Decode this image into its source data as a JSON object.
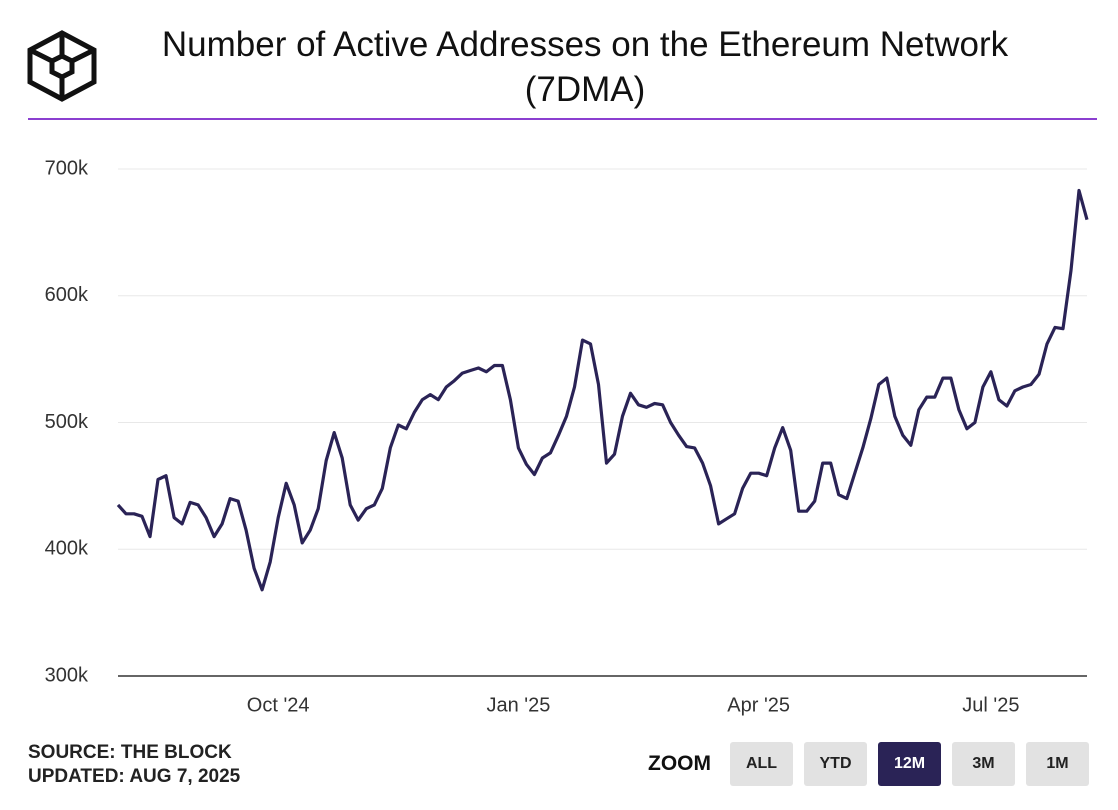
{
  "chart_data": {
    "type": "line",
    "title": "Number of Active Addresses on the Ethereum Network (7DMA)",
    "categories": [
      null,
      null,
      null,
      null,
      null,
      null,
      null,
      null,
      null,
      null,
      null,
      null,
      null,
      null,
      null,
      null,
      null,
      null,
      null,
      null,
      "Oct '24",
      null,
      null,
      null,
      null,
      null,
      null,
      null,
      null,
      null,
      null,
      null,
      null,
      null,
      null,
      null,
      null,
      null,
      null,
      null,
      null,
      null,
      null,
      null,
      null,
      null,
      null,
      null,
      null,
      null,
      "Jan '25",
      null,
      null,
      null,
      null,
      null,
      null,
      null,
      null,
      null,
      null,
      null,
      null,
      null,
      null,
      null,
      null,
      null,
      null,
      null,
      null,
      null,
      null,
      null,
      null,
      null,
      null,
      null,
      null,
      null,
      "Apr '25",
      null,
      null,
      null,
      null,
      null,
      null,
      null,
      null,
      null,
      null,
      null,
      null,
      null,
      null,
      null,
      null,
      null,
      null,
      null,
      null,
      null,
      null,
      null,
      null,
      null,
      null,
      null,
      null,
      "Jul '25",
      null,
      null,
      null,
      null,
      null,
      null,
      null,
      null,
      null,
      null,
      null,
      null
    ],
    "series": [
      {
        "name": "Active Addresses (7DMA)",
        "color": "#2a2356",
        "values": [
          435000,
          428000,
          428000,
          426000,
          410000,
          455000,
          458000,
          425000,
          420000,
          437000,
          435000,
          425000,
          410000,
          420000,
          440000,
          438000,
          415000,
          385000,
          368000,
          390000,
          425000,
          452000,
          435000,
          405000,
          415000,
          432000,
          470000,
          492000,
          472000,
          435000,
          423000,
          432000,
          435000,
          448000,
          480000,
          498000,
          495000,
          508000,
          518000,
          522000,
          518000,
          528000,
          533000,
          539000,
          541000,
          543000,
          540000,
          545000,
          545000,
          518000,
          480000,
          467000,
          459000,
          472000,
          476000,
          490000,
          505000,
          528000,
          565000,
          562000,
          530000,
          468000,
          475000,
          505000,
          523000,
          514000,
          512000,
          515000,
          514000,
          500000,
          490000,
          481000,
          480000,
          468000,
          450000,
          420000,
          424000,
          428000,
          448000,
          460000,
          460000,
          458000,
          480000,
          496000,
          478000,
          430000,
          430000,
          438000,
          468000,
          468000,
          443000,
          440000,
          460000,
          480000,
          503000,
          530000,
          535000,
          505000,
          490000,
          482000,
          510000,
          520000,
          520000,
          535000,
          535000,
          510000,
          495000,
          500000,
          528000,
          540000,
          518000,
          513000,
          525000,
          528000,
          530000,
          538000,
          562000,
          575000,
          574000,
          620000,
          683000,
          660000
        ]
      }
    ],
    "ylim": [
      300000,
      700000
    ],
    "yticks": [
      {
        "value": 300000,
        "label": "300k"
      },
      {
        "value": 400000,
        "label": "400k"
      },
      {
        "value": 500000,
        "label": "500k"
      },
      {
        "value": 600000,
        "label": "600k"
      },
      {
        "value": 700000,
        "label": "700k"
      }
    ],
    "grid": true
  },
  "source": "SOURCE: THE BLOCK",
  "updated": "UPDATED: AUG 7, 2025",
  "zoom": {
    "label": "ZOOM",
    "buttons": [
      "ALL",
      "YTD",
      "12M",
      "3M",
      "1M"
    ],
    "active": "12M"
  }
}
